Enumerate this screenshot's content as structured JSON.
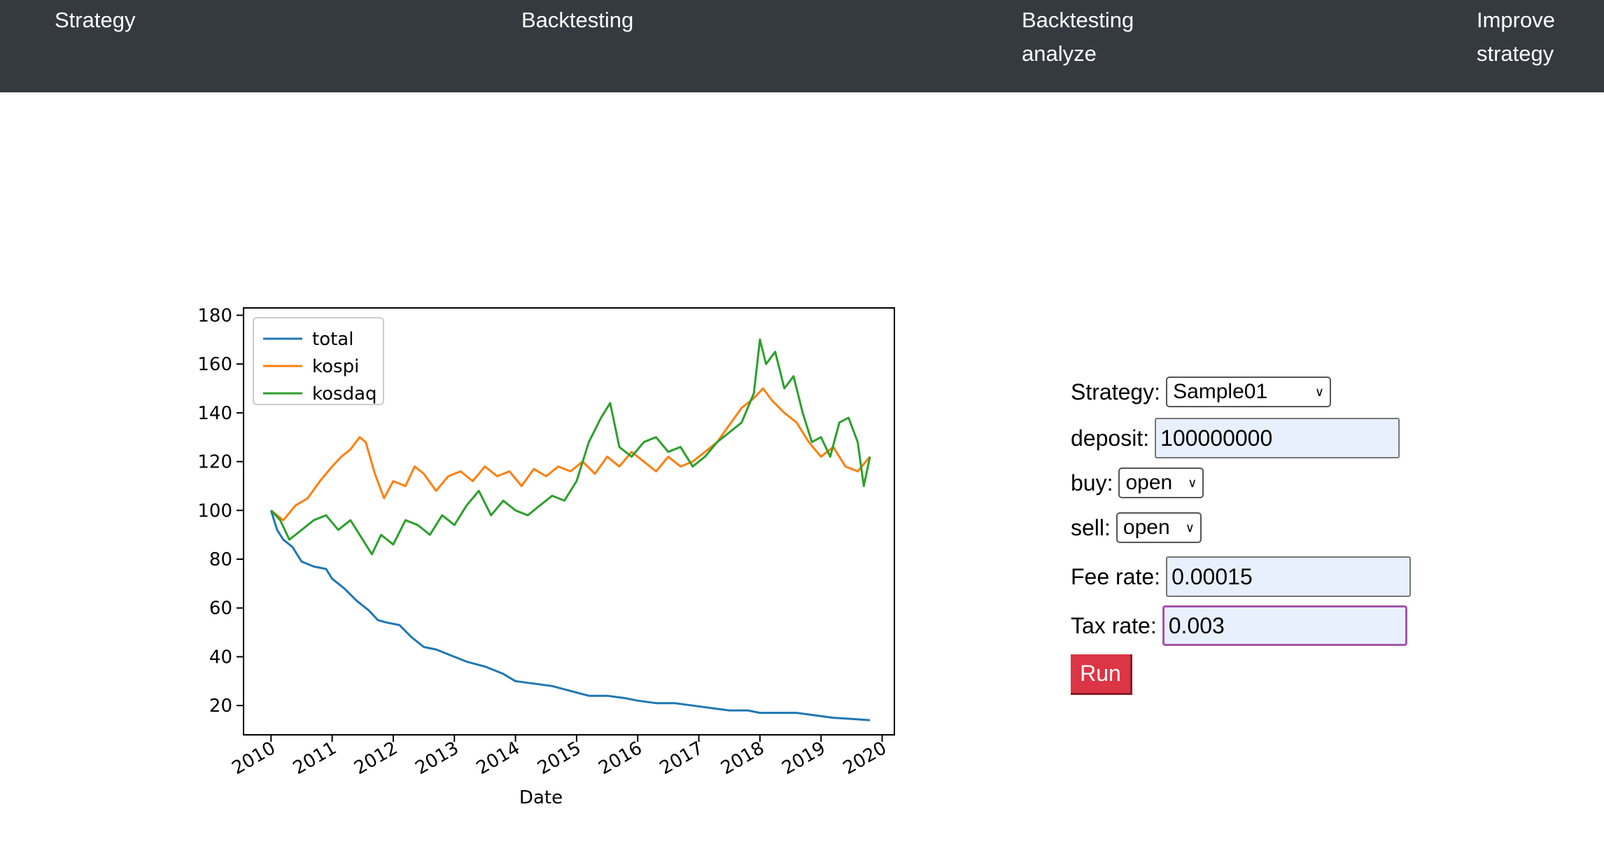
{
  "nav": {
    "strategy": "Strategy",
    "backtesting": "Backtesting",
    "analyze": "Backtesting analyze",
    "improve": "Improve strategy"
  },
  "form": {
    "strategy_label": "Strategy:",
    "strategy_value": "Sample01",
    "deposit_label": "deposit:",
    "deposit_value": "100000000",
    "buy_label": "buy:",
    "buy_value": "open",
    "sell_label": "sell:",
    "sell_value": "open",
    "fee_label": "Fee rate:",
    "fee_value": "0.00015",
    "tax_label": "Tax rate:",
    "tax_value": "0.003",
    "run_label": "Run"
  },
  "chart_data": {
    "type": "line",
    "title": "",
    "xlabel": "Date",
    "ylabel": "",
    "xlim": [
      2010.0,
      2020.0
    ],
    "ylim": [
      0,
      180
    ],
    "xticks": [
      "2010",
      "2011",
      "2012",
      "2013",
      "2014",
      "2015",
      "2016",
      "2017",
      "2018",
      "2019",
      "2020"
    ],
    "yticks": [
      20,
      40,
      60,
      80,
      100,
      120,
      140,
      160,
      180
    ],
    "legend": "top-left",
    "series": [
      {
        "name": "total",
        "color": "#1f77b4",
        "x": [
          2010.0,
          2010.1,
          2010.2,
          2010.35,
          2010.5,
          2010.7,
          2010.9,
          2011.0,
          2011.2,
          2011.4,
          2011.6,
          2011.75,
          2011.9,
          2012.1,
          2012.3,
          2012.5,
          2012.7,
          2012.9,
          2013.2,
          2013.5,
          2013.8,
          2014.0,
          2014.3,
          2014.6,
          2014.9,
          2015.2,
          2015.5,
          2015.8,
          2016.0,
          2016.3,
          2016.6,
          2016.9,
          2017.2,
          2017.5,
          2017.8,
          2018.0,
          2018.3,
          2018.6,
          2018.9,
          2019.2,
          2019.5,
          2019.8
        ],
        "y": [
          100,
          92,
          88,
          85,
          79,
          77,
          76,
          72,
          68,
          63,
          59,
          55,
          54,
          53,
          48,
          44,
          43,
          41,
          38,
          36,
          33,
          30,
          29,
          28,
          26,
          24,
          24,
          23,
          22,
          21,
          21,
          20,
          19,
          18,
          18,
          17,
          17,
          17,
          16,
          15,
          14.5,
          14
        ]
      },
      {
        "name": "kospi",
        "color": "#ff7f0e",
        "x": [
          2010.0,
          2010.2,
          2010.4,
          2010.6,
          2010.8,
          2011.0,
          2011.15,
          2011.3,
          2011.45,
          2011.55,
          2011.7,
          2011.85,
          2012.0,
          2012.2,
          2012.35,
          2012.5,
          2012.7,
          2012.9,
          2013.1,
          2013.3,
          2013.5,
          2013.7,
          2013.9,
          2014.1,
          2014.3,
          2014.5,
          2014.7,
          2014.9,
          2015.1,
          2015.3,
          2015.5,
          2015.7,
          2015.9,
          2016.1,
          2016.3,
          2016.5,
          2016.7,
          2016.9,
          2017.1,
          2017.3,
          2017.5,
          2017.7,
          2017.9,
          2018.05,
          2018.2,
          2018.4,
          2018.6,
          2018.8,
          2019.0,
          2019.2,
          2019.4,
          2019.6,
          2019.8
        ],
        "y": [
          100,
          96,
          102,
          105,
          112,
          118,
          122,
          125,
          130,
          128,
          115,
          105,
          112,
          110,
          118,
          115,
          108,
          114,
          116,
          112,
          118,
          114,
          116,
          110,
          117,
          114,
          118,
          116,
          120,
          115,
          122,
          118,
          124,
          120,
          116,
          122,
          118,
          120,
          124,
          128,
          135,
          142,
          146,
          150,
          145,
          140,
          136,
          128,
          122,
          126,
          118,
          116,
          122
        ]
      },
      {
        "name": "kosdaq",
        "color": "#2ca02c",
        "x": [
          2010.0,
          2010.15,
          2010.3,
          2010.5,
          2010.7,
          2010.9,
          2011.1,
          2011.3,
          2011.5,
          2011.65,
          2011.8,
          2012.0,
          2012.2,
          2012.4,
          2012.6,
          2012.8,
          2013.0,
          2013.2,
          2013.4,
          2013.6,
          2013.8,
          2014.0,
          2014.2,
          2014.4,
          2014.6,
          2014.8,
          2015.0,
          2015.2,
          2015.4,
          2015.55,
          2015.7,
          2015.9,
          2016.1,
          2016.3,
          2016.5,
          2016.7,
          2016.9,
          2017.1,
          2017.3,
          2017.5,
          2017.7,
          2017.9,
          2018.0,
          2018.1,
          2018.25,
          2018.4,
          2018.55,
          2018.7,
          2018.85,
          2019.0,
          2019.15,
          2019.3,
          2019.45,
          2019.6,
          2019.7,
          2019.8
        ],
        "y": [
          100,
          96,
          88,
          92,
          96,
          98,
          92,
          96,
          88,
          82,
          90,
          86,
          96,
          94,
          90,
          98,
          94,
          102,
          108,
          98,
          104,
          100,
          98,
          102,
          106,
          104,
          112,
          128,
          138,
          144,
          126,
          122,
          128,
          130,
          124,
          126,
          118,
          122,
          128,
          132,
          136,
          148,
          170,
          160,
          165,
          150,
          155,
          140,
          128,
          130,
          122,
          136,
          138,
          128,
          110,
          122
        ]
      }
    ]
  }
}
